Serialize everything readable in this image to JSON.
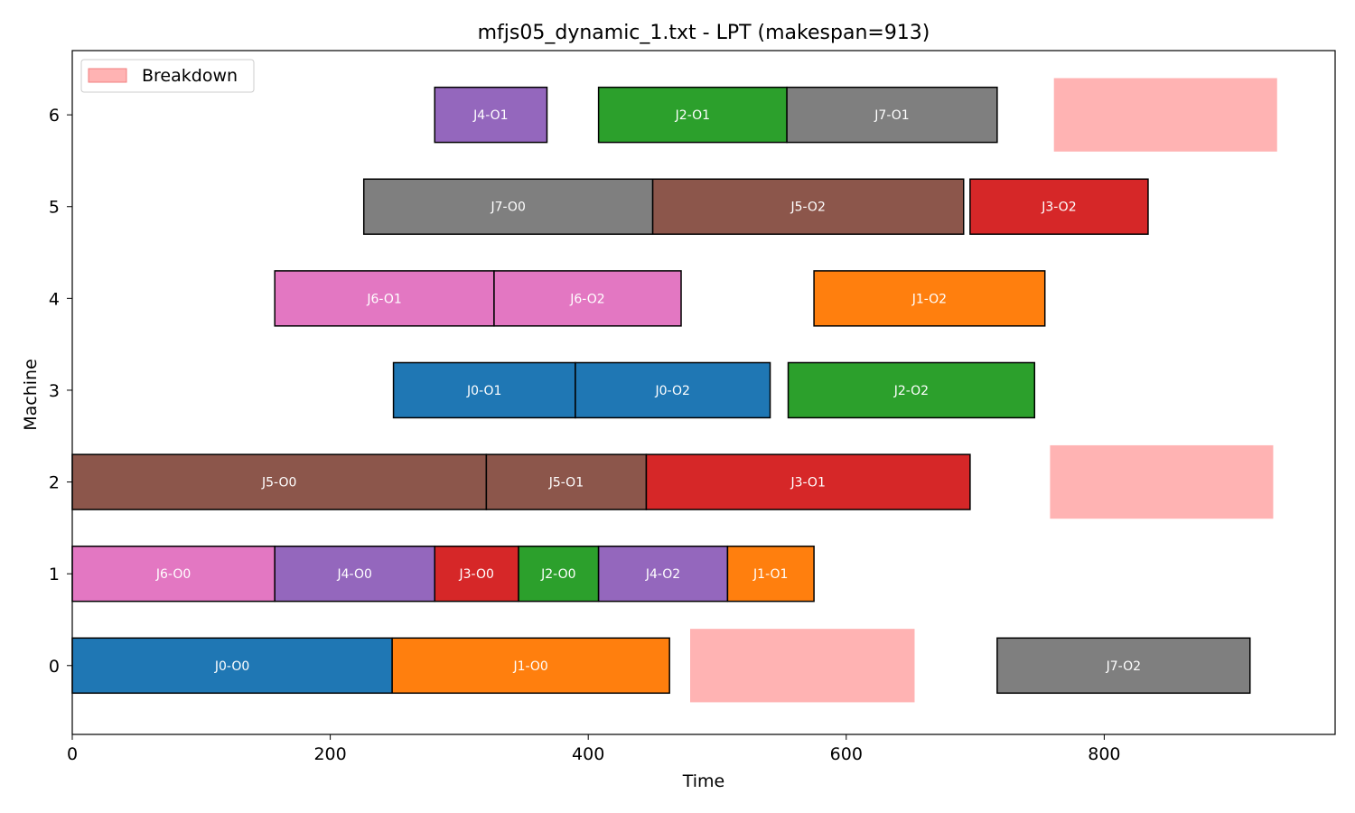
{
  "chart_data": {
    "type": "gantt",
    "title": "mfjs05_dynamic_1.txt - LPT (makespan=913)",
    "xlabel": "Time",
    "ylabel": "Machine",
    "xlim": [
      0,
      979
    ],
    "ylim": [
      -0.75,
      6.7
    ],
    "xticks": [
      0,
      200,
      400,
      600,
      800
    ],
    "yticks": [
      0,
      1,
      2,
      3,
      4,
      5,
      6
    ],
    "grid": false,
    "legend": {
      "position": "top-left",
      "entries": [
        {
          "label": "Breakdown",
          "color": "#ffb3b3",
          "edge": "#f08080"
        }
      ]
    },
    "job_colors": {
      "J0": "#1f77b4",
      "J1": "#ff7f0e",
      "J2": "#2ca02c",
      "J3": "#d62728",
      "J4": "#9467bd",
      "J5": "#8c564b",
      "J6": "#e377c2",
      "J7": "#7f7f7f"
    },
    "breakdown_color": "#ffb3b3",
    "tasks": [
      {
        "label": "J0-O0",
        "job": "J0",
        "machine": 0,
        "start": 0,
        "end": 248
      },
      {
        "label": "J1-O0",
        "job": "J1",
        "machine": 0,
        "start": 248,
        "end": 463
      },
      {
        "label": "J7-O2",
        "job": "J7",
        "machine": 0,
        "start": 717,
        "end": 913
      },
      {
        "label": "J6-O0",
        "job": "J6",
        "machine": 1,
        "start": 0,
        "end": 157
      },
      {
        "label": "J4-O0",
        "job": "J4",
        "machine": 1,
        "start": 157,
        "end": 281
      },
      {
        "label": "J3-O0",
        "job": "J3",
        "machine": 1,
        "start": 281,
        "end": 346
      },
      {
        "label": "J2-O0",
        "job": "J2",
        "machine": 1,
        "start": 346,
        "end": 408
      },
      {
        "label": "J4-O2",
        "job": "J4",
        "machine": 1,
        "start": 408,
        "end": 508
      },
      {
        "label": "J1-O1",
        "job": "J1",
        "machine": 1,
        "start": 508,
        "end": 575
      },
      {
        "label": "J5-O0",
        "job": "J5",
        "machine": 2,
        "start": 0,
        "end": 321
      },
      {
        "label": "J5-O1",
        "job": "J5",
        "machine": 2,
        "start": 321,
        "end": 445
      },
      {
        "label": "J3-O1",
        "job": "J3",
        "machine": 2,
        "start": 445,
        "end": 696
      },
      {
        "label": "J0-O1",
        "job": "J0",
        "machine": 3,
        "start": 249,
        "end": 390
      },
      {
        "label": "J0-O2",
        "job": "J0",
        "machine": 3,
        "start": 390,
        "end": 541
      },
      {
        "label": "J2-O2",
        "job": "J2",
        "machine": 3,
        "start": 555,
        "end": 746
      },
      {
        "label": "J6-O1",
        "job": "J6",
        "machine": 4,
        "start": 157,
        "end": 327
      },
      {
        "label": "J6-O2",
        "job": "J6",
        "machine": 4,
        "start": 327,
        "end": 472
      },
      {
        "label": "J1-O2",
        "job": "J1",
        "machine": 4,
        "start": 575,
        "end": 754
      },
      {
        "label": "J7-O0",
        "job": "J7",
        "machine": 5,
        "start": 226,
        "end": 450
      },
      {
        "label": "J5-O2",
        "job": "J5",
        "machine": 5,
        "start": 450,
        "end": 691
      },
      {
        "label": "J3-O2",
        "job": "J3",
        "machine": 5,
        "start": 696,
        "end": 834
      },
      {
        "label": "J4-O1",
        "job": "J4",
        "machine": 6,
        "start": 281,
        "end": 368
      },
      {
        "label": "J2-O1",
        "job": "J2",
        "machine": 6,
        "start": 408,
        "end": 554
      },
      {
        "label": "J7-O1",
        "job": "J7",
        "machine": 6,
        "start": 554,
        "end": 717
      }
    ],
    "breakdowns": [
      {
        "machine": 0,
        "start": 479,
        "end": 653
      },
      {
        "machine": 2,
        "start": 758,
        "end": 931
      },
      {
        "machine": 6,
        "start": 761,
        "end": 934
      }
    ]
  }
}
